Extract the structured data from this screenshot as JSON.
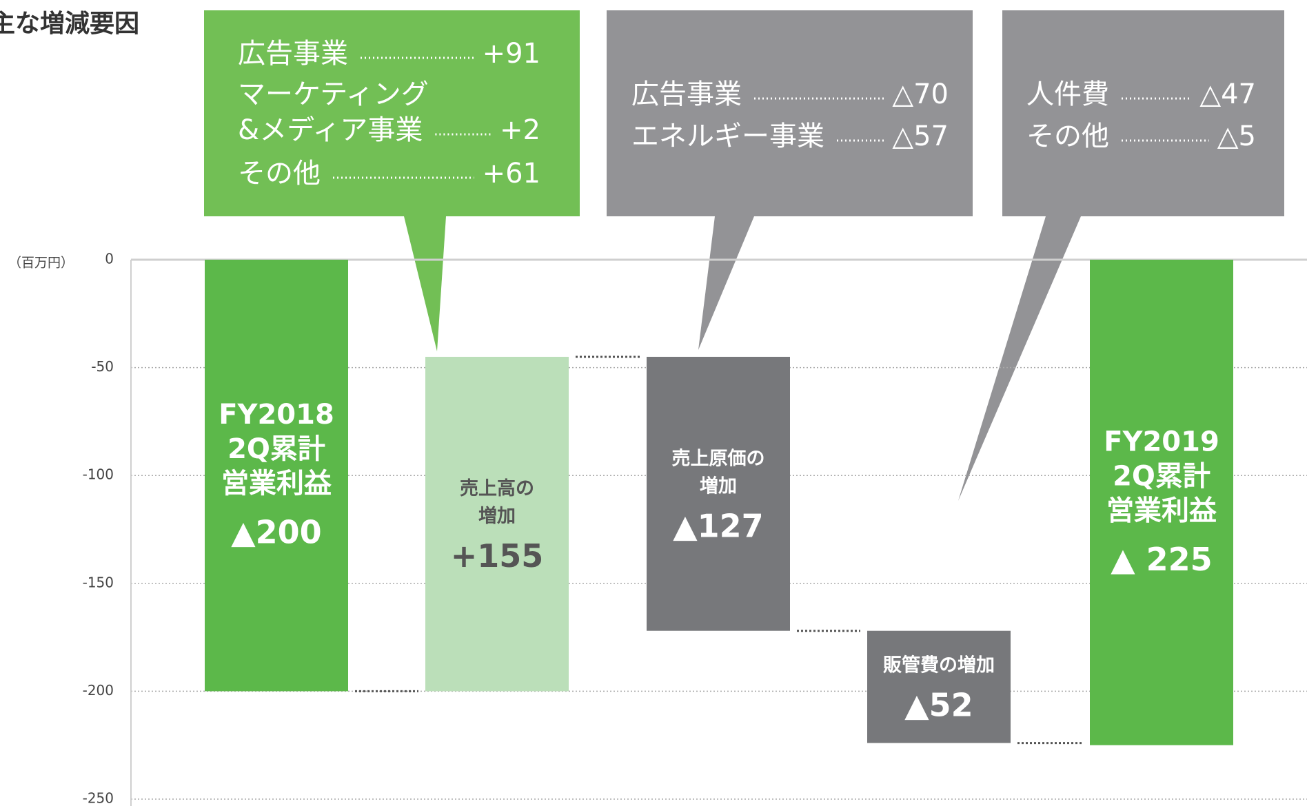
{
  "chart_data": {
    "type": "waterfall",
    "title": "主な増減要因",
    "y_unit": "（百万円）",
    "categories": [
      [
        "FY2018",
        "2Q累計",
        "営業利益"
      ],
      [
        "売上高の",
        "増加"
      ],
      [
        "売上原価の",
        "増加"
      ],
      [
        "販管費の増加"
      ],
      [
        "FY2019",
        "2Q累計",
        "営業利益"
      ]
    ],
    "values": [
      -200,
      155,
      -127,
      -52,
      -225
    ],
    "value_labels": [
      "▲200",
      "+155",
      "▲127",
      "▲52",
      "▲ 225"
    ],
    "measure": [
      "absolute",
      "relative",
      "relative",
      "relative",
      "absolute"
    ],
    "colors": [
      "#5cb84a",
      "#bbdfb9",
      "#77787b",
      "#77787b",
      "#5cb84a"
    ],
    "ylim": [
      -250,
      0
    ],
    "yticks": [
      0,
      -50,
      -100,
      -150,
      -200,
      -250
    ],
    "grid": true,
    "callouts": [
      {
        "color": "#72bf55",
        "items": [
          {
            "name": [
              "広告事業"
            ],
            "value": "+91"
          },
          {
            "name": [
              "マーケティング",
              "&メディア事業"
            ],
            "value": "+2"
          },
          {
            "name": [
              "その他"
            ],
            "value": "+61"
          }
        ]
      },
      {
        "color": "#939396",
        "items": [
          {
            "name": [
              "広告事業"
            ],
            "value": "△70"
          },
          {
            "name": [
              "エネルギー事業"
            ],
            "value": "△57"
          }
        ]
      },
      {
        "color": "#939396",
        "items": [
          {
            "name": [
              "人件費"
            ],
            "value": "△47"
          },
          {
            "name": [
              "その他"
            ],
            "value": "△5"
          }
        ]
      }
    ]
  }
}
